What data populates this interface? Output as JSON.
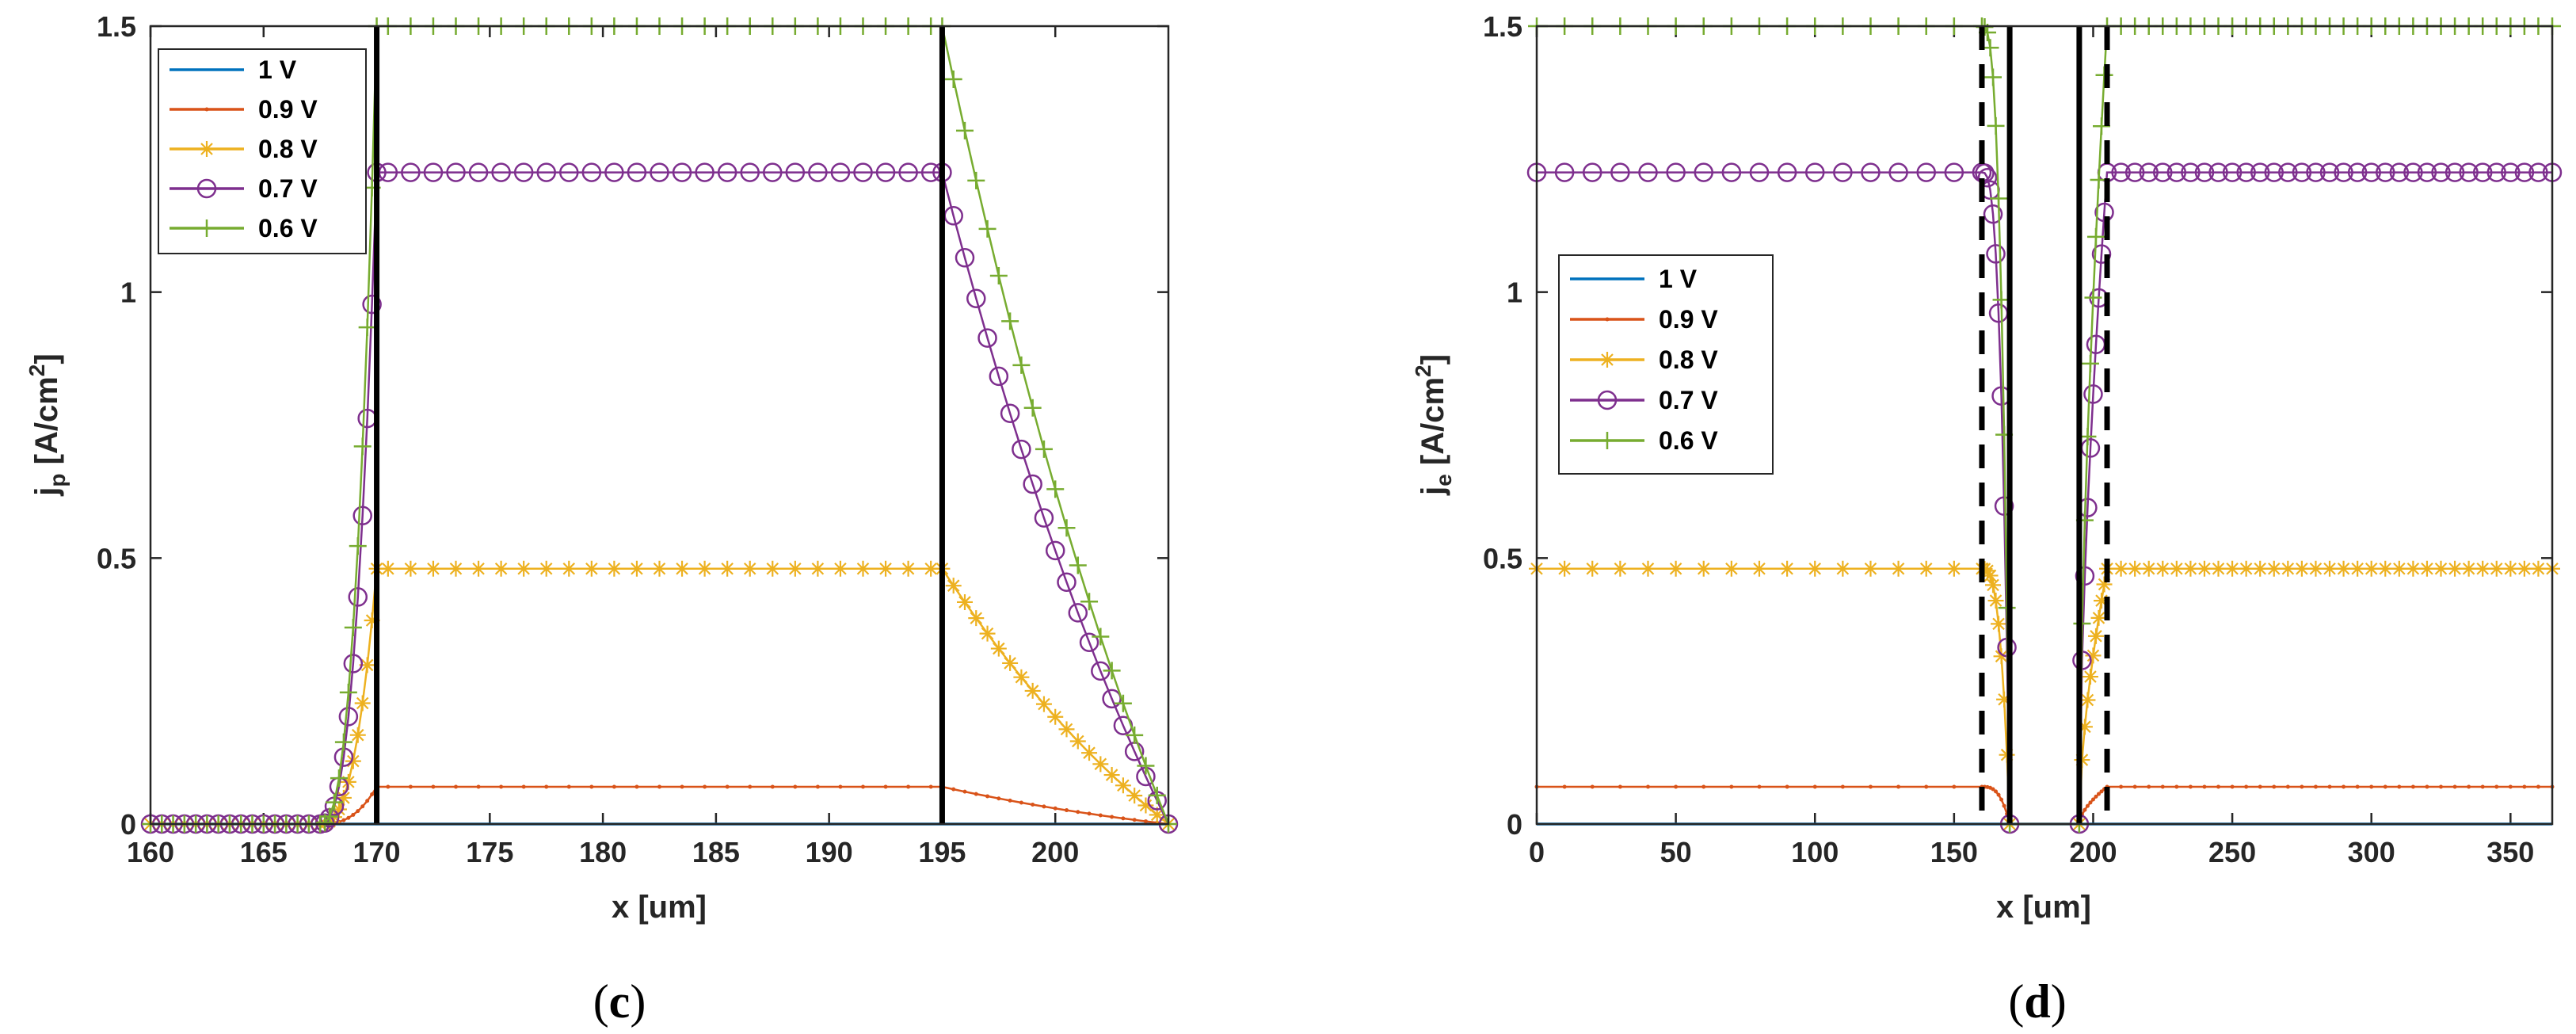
{
  "chart_data": [
    {
      "type": "line",
      "panel": "c",
      "caption_open": "(",
      "caption_letter": "c",
      "caption_close": ")",
      "xlabel": "x [um]",
      "ylabel_main": "j",
      "ylabel_sub": "p",
      "ylabel_unit": " [A/cm",
      "ylabel_sup": "2",
      "ylabel_close": "]",
      "xlim": [
        160,
        205
      ],
      "ylim": [
        0,
        1.5
      ],
      "xticks": [
        160,
        165,
        170,
        175,
        180,
        185,
        190,
        195,
        200
      ],
      "yticks": [
        0,
        0.5,
        1,
        1.5
      ],
      "ytick_labels": [
        "0",
        "0.5",
        "1",
        "1.5"
      ],
      "legend_position": "top-left",
      "vertical_lines": [
        {
          "x": 170,
          "style": "solid"
        },
        {
          "x": 195,
          "style": "solid"
        }
      ],
      "series": [
        {
          "name": "1 V",
          "color": "#0072BD",
          "marker": "none",
          "plateau": 0.0
        },
        {
          "name": "0.9 V",
          "color": "#D95319",
          "marker": "dot",
          "plateau": 0.07
        },
        {
          "name": "0.8 V",
          "color": "#EDB120",
          "marker": "asterisk",
          "plateau": 0.48
        },
        {
          "name": "0.7 V",
          "color": "#7E2F8E",
          "marker": "circle",
          "plateau": 1.225
        },
        {
          "name": "0.6 V",
          "color": "#77AC30",
          "marker": "plus",
          "plateau": 1.5
        }
      ]
    },
    {
      "type": "line",
      "panel": "d",
      "caption_open": "(",
      "caption_letter": "d",
      "caption_close": ")",
      "xlabel": "x [um]",
      "ylabel_main": "j",
      "ylabel_sub": "e",
      "ylabel_unit": " [A/cm",
      "ylabel_sup": "2",
      "ylabel_close": "]",
      "xlim": [
        0,
        365
      ],
      "ylim": [
        0,
        1.5
      ],
      "xticks": [
        0,
        50,
        100,
        150,
        200,
        250,
        300,
        350
      ],
      "yticks": [
        0,
        0.5,
        1,
        1.5
      ],
      "ytick_labels": [
        "0",
        "0.5",
        "1",
        "1.5"
      ],
      "legend_position": "middle-left",
      "vertical_lines": [
        {
          "x": 160,
          "style": "dashed"
        },
        {
          "x": 170,
          "style": "solid"
        },
        {
          "x": 195,
          "style": "solid"
        },
        {
          "x": 205,
          "style": "dashed"
        }
      ],
      "series": [
        {
          "name": "1 V",
          "color": "#0072BD",
          "marker": "none",
          "plateau": 0.0
        },
        {
          "name": "0.9 V",
          "color": "#D95319",
          "marker": "dot",
          "plateau": 0.07
        },
        {
          "name": "0.8 V",
          "color": "#EDB120",
          "marker": "asterisk",
          "plateau": 0.48
        },
        {
          "name": "0.7 V",
          "color": "#7E2F8E",
          "marker": "circle",
          "plateau": 1.225
        },
        {
          "name": "0.6 V",
          "color": "#77AC30",
          "marker": "plus",
          "plateau": 1.5
        }
      ]
    }
  ]
}
